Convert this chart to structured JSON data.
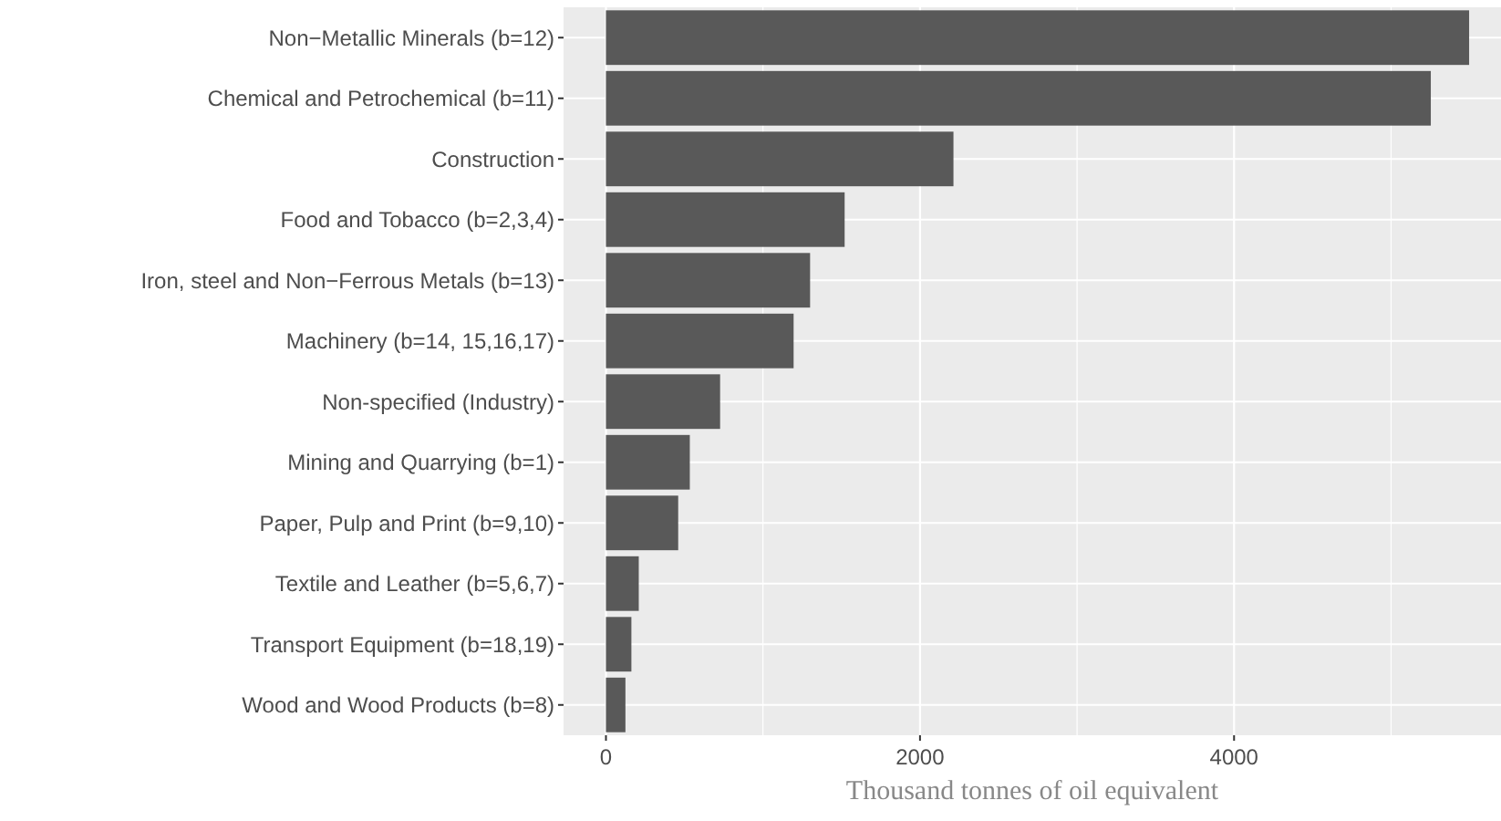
{
  "chart_data": {
    "type": "bar",
    "orientation": "horizontal",
    "xlabel": "Thousand tonnes of oil equivalent",
    "categories": [
      "Non−Metallic Minerals (b=12)",
      "Chemical and Petrochemical (b=11)",
      "Construction",
      "Food and Tobacco (b=2,3,4)",
      "Iron, steel and Non−Ferrous Metals (b=13)",
      "Machinery (b=14, 15,16,17)",
      "Non-specified (Industry)",
      "Mining and Quarrying (b=1)",
      "Paper, Pulp and Print (b=9,10)",
      "Textile and Leather (b=5,6,7)",
      "Transport Equipment (b=18,19)",
      "Wood and Wood Products (b=8)"
    ],
    "values": [
      5497,
      5253,
      2213,
      1520,
      1300,
      1195,
      727,
      534,
      460,
      209,
      162,
      124
    ],
    "color": "#595959",
    "xlim": [
      -270,
      5700
    ],
    "xticks": [
      0,
      {
        "value": 1000,
        "label": null
      },
      2000,
      {
        "value": 3000,
        "label": null
      },
      4000,
      {
        "value": 5000,
        "label": null
      }
    ],
    "grid": true
  }
}
